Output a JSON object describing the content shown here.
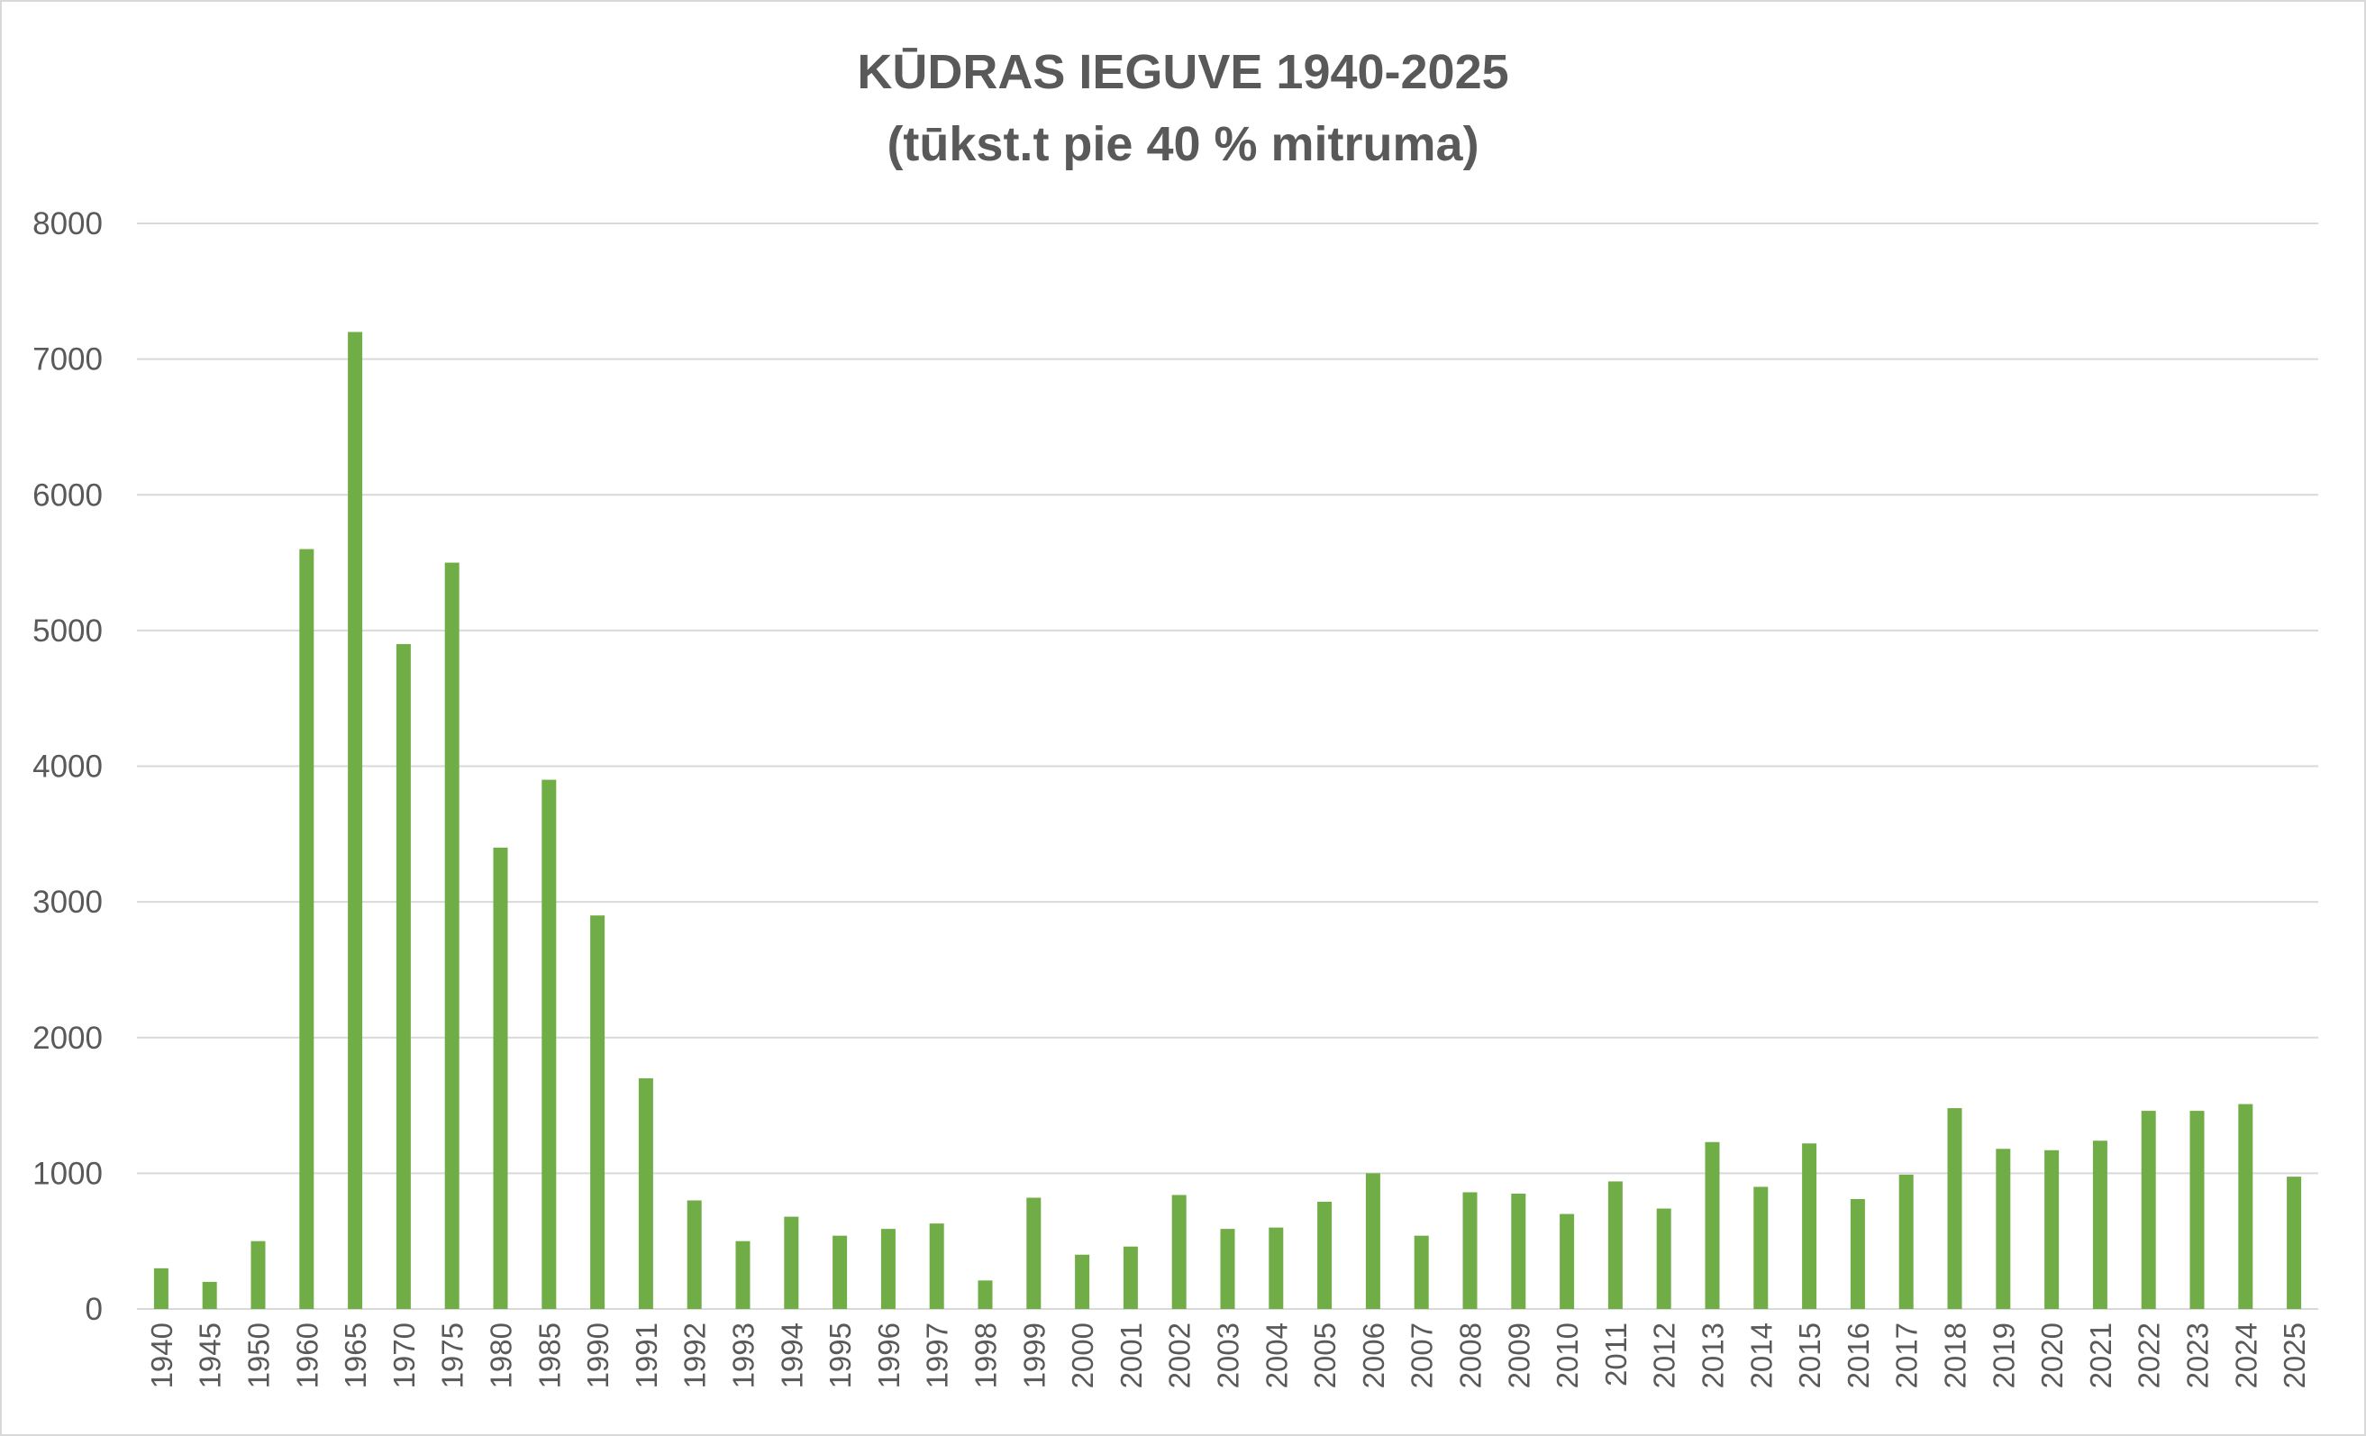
{
  "chart_data": {
    "type": "bar",
    "title": "KŪDRAS IEGUVE 1940-2025",
    "subtitle": "(tūkst.t pie 40 % mitruma)",
    "xlabel": "",
    "ylabel": "",
    "ylim": [
      0,
      8000
    ],
    "yticks": [
      "0",
      "1000",
      "2000",
      "3000",
      "4000",
      "5000",
      "6000",
      "7000",
      "8000"
    ],
    "grid": true,
    "legend": "none",
    "bar_color": "#70ad47",
    "grid_color": "#d9d9d9",
    "text_color": "#595959",
    "categories": [
      "1940",
      "1945",
      "1950",
      "1960",
      "1965",
      "1970",
      "1975",
      "1980",
      "1985",
      "1990",
      "1991",
      "1992",
      "1993",
      "1994",
      "1995",
      "1996",
      "1997",
      "1998",
      "1999",
      "2000",
      "2001",
      "2002",
      "2003",
      "2004",
      "2005",
      "2006",
      "2007",
      "2008",
      "2009",
      "2010",
      "2011",
      "2012",
      "2013",
      "2014",
      "2015",
      "2016",
      "2017",
      "2018",
      "2019",
      "2020",
      "2021",
      "2022",
      "2023",
      "2024",
      "2025"
    ],
    "values": [
      300,
      200,
      500,
      5600,
      7200,
      4900,
      5500,
      3400,
      3900,
      2900,
      1700,
      800,
      500,
      680,
      540,
      590,
      630,
      210,
      820,
      400,
      460,
      840,
      590,
      600,
      790,
      1000,
      540,
      860,
      850,
      700,
      940,
      740,
      1230,
      900,
      1220,
      810,
      990,
      1480,
      1180,
      1170,
      1240,
      1460,
      1460,
      1510,
      975
    ]
  }
}
